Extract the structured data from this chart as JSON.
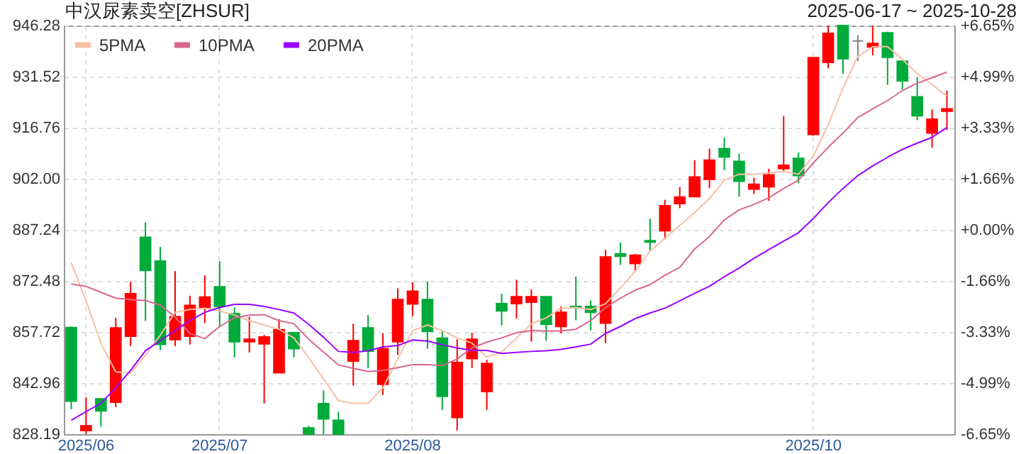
{
  "chart_data": {
    "type": "candlestick",
    "title": "中汉尿素卖空[ZHSUR]",
    "subtitle": "2025-06-17 ~ 2025-10-28",
    "categories": [
      null,
      "2025/06",
      null,
      null,
      null,
      null,
      null,
      null,
      null,
      null,
      "2025/07",
      null,
      null,
      null,
      null,
      null,
      null,
      null,
      null,
      null,
      null,
      null,
      null,
      "2025/08",
      null,
      null,
      null,
      null,
      null,
      null,
      null,
      null,
      null,
      null,
      null,
      null,
      null,
      null,
      null,
      null,
      null,
      null,
      null,
      null,
      null,
      null,
      null,
      null,
      null,
      null,
      "2025/10",
      null,
      null,
      null,
      null,
      null,
      null,
      null,
      null,
      null
    ],
    "ohlc": [
      [
        859.0,
        859.3,
        835.4,
        837.7
      ],
      [
        829.2,
        838.8,
        828.2,
        830.6
      ],
      [
        838.4,
        838.4,
        830.3,
        834.9
      ],
      [
        837.4,
        861.8,
        836.0,
        858.9
      ],
      [
        856.5,
        872.3,
        853.6,
        868.8
      ],
      [
        885.1,
        889.4,
        860.9,
        875.5
      ],
      [
        878.2,
        882.3,
        852.5,
        854.1
      ],
      [
        855.5,
        875.3,
        853.6,
        862.1
      ],
      [
        856.5,
        868.2,
        854.1,
        865.4
      ],
      [
        864.8,
        874.1,
        860.3,
        867.8
      ],
      [
        870.8,
        878.2,
        859.6,
        865.1
      ],
      [
        863.0,
        864.8,
        850.4,
        854.9
      ],
      [
        854.9,
        862.1,
        851.8,
        855.6
      ],
      [
        854.3,
        856.9,
        837.1,
        856.3
      ],
      [
        845.9,
        861.4,
        845.9,
        858.4
      ],
      [
        857.5,
        857.7,
        850.4,
        852.9
      ],
      [
        830.0,
        830.6,
        828.2,
        828.2
      ],
      [
        837.0,
        840.8,
        828.2,
        832.6
      ],
      [
        832.2,
        834.7,
        828.2,
        828.2
      ],
      [
        849.3,
        860.1,
        842.2,
        855.2
      ],
      [
        858.9,
        862.6,
        847.3,
        852.2
      ],
      [
        842.6,
        857.3,
        839.5,
        852.9
      ],
      [
        854.9,
        870.3,
        851.1,
        867.1
      ],
      [
        865.8,
        872.1,
        862.3,
        869.5
      ],
      [
        867.1,
        872.3,
        852.9,
        857.9
      ],
      [
        855.9,
        857.9,
        835.2,
        839.1
      ],
      [
        833.0,
        855.6,
        829.2,
        848.9
      ],
      [
        850.0,
        857.5,
        847.3,
        855.6
      ],
      [
        840.5,
        849.7,
        835.2,
        848.6
      ],
      [
        865.9,
        868.8,
        859.6,
        863.8
      ],
      [
        865.9,
        872.8,
        861.6,
        867.9
      ],
      [
        866.3,
        870.0,
        854.9,
        867.9
      ],
      [
        867.9,
        867.9,
        855.2,
        859.9
      ],
      [
        859.3,
        865.1,
        857.3,
        863.4
      ],
      [
        865.1,
        873.7,
        861.1,
        864.8
      ],
      [
        865.1,
        866.8,
        858.2,
        863.4
      ],
      [
        860.3,
        881.5,
        854.5,
        879.4
      ],
      [
        880.3,
        883.6,
        877.1,
        879.6
      ],
      [
        877.5,
        880.3,
        875.1,
        879.9
      ],
      [
        884.1,
        890.5,
        881.2,
        883.7
      ],
      [
        887.0,
        895.9,
        884.5,
        894.2
      ],
      [
        894.8,
        899.6,
        893.5,
        896.7
      ],
      [
        896.8,
        907.4,
        896.8,
        902.5
      ],
      [
        901.8,
        910.7,
        899.3,
        907.4
      ],
      [
        910.7,
        913.9,
        904.5,
        908.3
      ],
      [
        907.0,
        909.3,
        896.8,
        901.3
      ],
      [
        899.0,
        902.3,
        897.6,
        900.4
      ],
      [
        899.7,
        904.9,
        895.6,
        903.1
      ],
      [
        904.9,
        920.1,
        904.2,
        905.9
      ],
      [
        907.9,
        909.6,
        900.7,
        902.9
      ],
      [
        914.8,
        937.0,
        914.4,
        937.0
      ],
      [
        935.6,
        946.28,
        933.9,
        944.0
      ],
      [
        946.28,
        946.28,
        932.3,
        936.7
      ],
      [
        941.8,
        943.5,
        936.0,
        941.8
      ],
      [
        940.1,
        946.28,
        937.7,
        941.1
      ],
      [
        944.2,
        944.5,
        929.1,
        937.1
      ],
      [
        936.0,
        936.0,
        927.8,
        930.3
      ],
      [
        925.7,
        931.2,
        918.9,
        920.2
      ],
      [
        915.2,
        922.0,
        911.0,
        919.2
      ],
      [
        921.5,
        927.5,
        916.1,
        922.2
      ]
    ],
    "colors": [
      "#00aa3b",
      "#ff0000",
      "#00aa3b",
      "#ff0000",
      "#ff0000",
      "#00aa3b",
      "#00aa3b",
      "#ff0000",
      "#ff0000",
      "#ff0000",
      "#00aa3b",
      "#00aa3b",
      "#ff0000",
      "#ff0000",
      "#ff0000",
      "#00aa3b",
      "#00aa3b",
      "#00aa3b",
      "#00aa3b",
      "#ff0000",
      "#00aa3b",
      "#ff0000",
      "#ff0000",
      "#ff0000",
      "#00aa3b",
      "#00aa3b",
      "#ff0000",
      "#ff0000",
      "#ff0000",
      "#00aa3b",
      "#ff0000",
      "#ff0000",
      "#00aa3b",
      "#ff0000",
      "#00aa3b",
      "#00aa3b",
      "#ff0000",
      "#00aa3b",
      "#ff0000",
      "#00aa3b",
      "#ff0000",
      "#ff0000",
      "#ff0000",
      "#ff0000",
      "#00aa3b",
      "#00aa3b",
      "#ff0000",
      "#ff0000",
      "#ff0000",
      "#00aa3b",
      "#ff0000",
      "#ff0000",
      "#00aa3b",
      "#808080",
      "#ff0000",
      "#00aa3b",
      "#00aa3b",
      "#00aa3b",
      "#ff0000",
      "#ff0000"
    ],
    "series": [
      {
        "type": "line",
        "name": "5PMA",
        "color": "#f7bfa3",
        "values": [
          877.8,
          866.7,
          854.4,
          846.2,
          845.8,
          851.1,
          856.8,
          863.4,
          864.2,
          864.6,
          863.8,
          862.6,
          861.0,
          859.7,
          858.5,
          856.0,
          850.3,
          844.1,
          837.9,
          837.1,
          837.1,
          841.6,
          849.9,
          858.1,
          859.7,
          858.1,
          856.0,
          854.5,
          850.4,
          851.9,
          856.0,
          860.1,
          861.8,
          864.6,
          864.8,
          864.2,
          865.9,
          870.4,
          875.3,
          881.1,
          884.8,
          888.5,
          892.2,
          896.3,
          901.6,
          903.3,
          903.3,
          903.7,
          904.1,
          903.3,
          908.6,
          917.6,
          928.3,
          937.4,
          940.2,
          940.2,
          936.5,
          932.4,
          929.2,
          925.9
        ]
      },
      {
        "type": "line",
        "name": "10PMA",
        "color": "#d9668e",
        "values": [
          871.6,
          870.9,
          869.2,
          867.5,
          867.1,
          866.8,
          865.5,
          862.0,
          857.3,
          855.8,
          859.3,
          861.8,
          862.6,
          862.7,
          861.0,
          860.1,
          855.6,
          851.9,
          848.2,
          847.2,
          846.3,
          846.6,
          847.4,
          848.3,
          848.3,
          848.0,
          849.9,
          853.1,
          854.8,
          856.0,
          857.5,
          858.1,
          858.0,
          858.0,
          858.5,
          861.0,
          864.8,
          867.5,
          869.8,
          871.4,
          874.1,
          876.4,
          881.7,
          885.3,
          890.1,
          893.0,
          894.6,
          896.5,
          899.2,
          901.6,
          906.6,
          911.1,
          915.2,
          919.7,
          922.2,
          924.6,
          927.5,
          929.6,
          931.2,
          932.8
        ]
      },
      {
        "type": "line",
        "name": "20PMA",
        "color": "#9900ff",
        "values": [
          832.2,
          834.7,
          837.1,
          841.6,
          846.6,
          852.3,
          855.2,
          858.1,
          861.0,
          863.4,
          864.8,
          865.7,
          865.7,
          865.1,
          864.2,
          863.2,
          859.9,
          856.2,
          852.1,
          851.8,
          852.3,
          853.4,
          853.8,
          855.4,
          855.1,
          854.0,
          853.1,
          852.4,
          852.4,
          851.5,
          851.8,
          852.1,
          852.3,
          852.7,
          853.4,
          854.2,
          857.3,
          859.3,
          861.6,
          863.2,
          864.6,
          866.7,
          868.9,
          870.9,
          873.7,
          876.2,
          879.0,
          881.5,
          884.0,
          886.4,
          890.5,
          895.1,
          899.2,
          902.9,
          905.7,
          908.2,
          910.5,
          912.3,
          914.0,
          916.8
        ]
      }
    ],
    "ylim": [
      828.19,
      946.28
    ],
    "yticks": [
      828.19,
      842.96,
      857.72,
      872.48,
      887.24,
      {
        "value": 902,
        "label": "902.00"
      },
      916.76,
      931.52,
      946.28
    ],
    "y2lim": [
      -6.65,
      6.65
    ],
    "y2ticks": [
      {
        "value": -6.65,
        "label": "-6.65%"
      },
      {
        "value": -4.99,
        "label": "-4.99%"
      },
      {
        "value": -3.33,
        "label": "-3.33%"
      },
      {
        "value": -1.66,
        "label": "-1.66%"
      },
      {
        "value": 0,
        "label": "+0.00%"
      },
      {
        "value": 1.66,
        "label": "+1.66%"
      },
      {
        "value": 3.33,
        "label": "+3.33%"
      },
      {
        "value": 4.99,
        "label": "+4.99%"
      },
      {
        "value": 6.65,
        "label": "+6.65%"
      }
    ],
    "grid": true,
    "legend": "top left"
  }
}
